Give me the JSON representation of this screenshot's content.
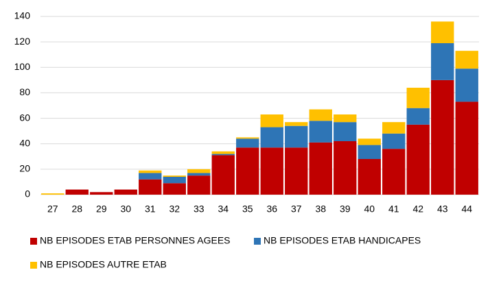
{
  "chart_data": {
    "type": "stacked_bar",
    "categories": [
      "27",
      "28",
      "29",
      "30",
      "31",
      "32",
      "33",
      "34",
      "35",
      "36",
      "37",
      "38",
      "39",
      "40",
      "41",
      "42",
      "43",
      "44"
    ],
    "series": [
      {
        "name": "NB EPISODES ETAB PERSONNES AGEES",
        "color": "#c00000",
        "values": [
          0,
          4,
          2,
          4,
          12,
          9,
          15,
          31,
          37,
          37,
          37,
          41,
          42,
          28,
          36,
          55,
          90,
          73
        ]
      },
      {
        "name": "NB EPISODES ETAB HANDICAPES",
        "color": "#2e75b6",
        "values": [
          0,
          0,
          0,
          0,
          5,
          5,
          2,
          1,
          7,
          16,
          17,
          17,
          15,
          11,
          12,
          13,
          29,
          26
        ]
      },
      {
        "name": "NB EPISODES AUTRE ETAB",
        "color": "#ffc000",
        "values": [
          1,
          0,
          0,
          0,
          2,
          1,
          3,
          2,
          1,
          10,
          3,
          9,
          6,
          5,
          9,
          16,
          17,
          14
        ]
      }
    ],
    "ylim": [
      0,
      140
    ],
    "yticks": [
      0,
      20,
      40,
      60,
      80,
      100,
      120,
      140
    ],
    "grid": true
  }
}
